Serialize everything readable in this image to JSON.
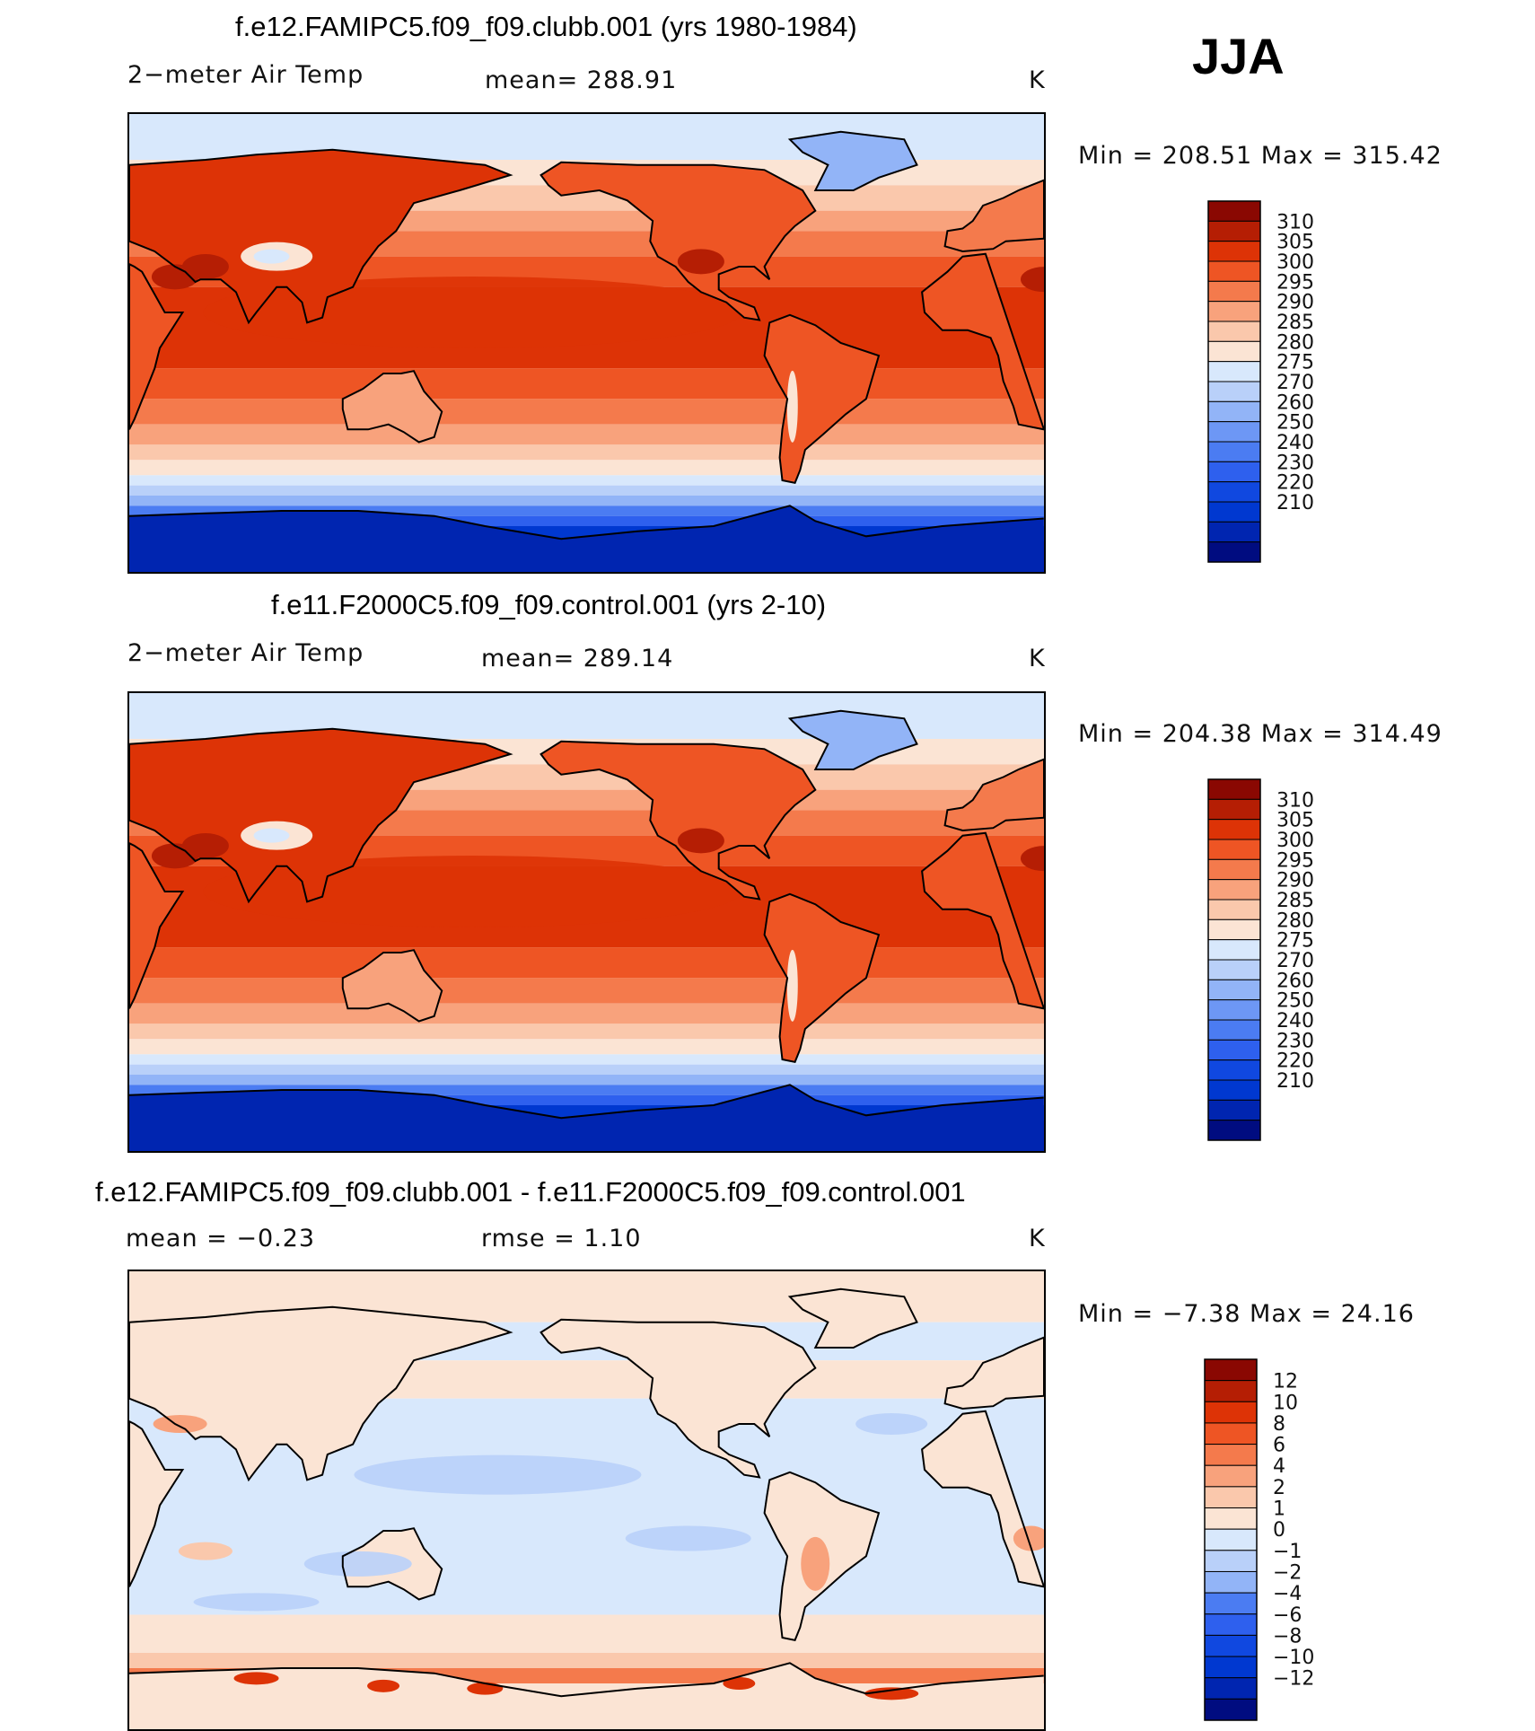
{
  "season": "JJA",
  "colors": {
    "abs_scale": [
      "#000c80",
      "#0025b0",
      "#0038d0",
      "#1048e0",
      "#2e60ee",
      "#4b7cf2",
      "#6d97f5",
      "#92b4f7",
      "#b9d0f9",
      "#d8e8fc",
      "#fbe4d4",
      "#fac8ac",
      "#f8a27c",
      "#f47a4c",
      "#ee5524",
      "#dd3306",
      "#b51e04",
      "#8a0802"
    ],
    "diff_scale": [
      "#000c80",
      "#0025b0",
      "#0038d0",
      "#1048e0",
      "#2e60ee",
      "#4b7cf2",
      "#92b4f7",
      "#b9d0f9",
      "#d8e8fc",
      "#fbe4d4",
      "#fac8ac",
      "#f8a27c",
      "#f47a4c",
      "#ee5524",
      "#dd3306",
      "#b51e04",
      "#8a0802"
    ],
    "land_outline": "#000000"
  },
  "chart_data": [
    {
      "type": "heatmap",
      "title": "f.e12.FAMIPC5.f09_f09.clubb.001 (yrs 1980-1984)",
      "variable": "2−meter Air Temp",
      "mean_label": "mean=  288.91",
      "mean": 288.91,
      "units": "K",
      "range_label": "Min  =  208.51  Max  =  315.42",
      "min": 208.51,
      "max": 315.42,
      "colorbar_ticks": [
        "310",
        "305",
        "300",
        "295",
        "290",
        "285",
        "280",
        "275",
        "270",
        "260",
        "250",
        "240",
        "230",
        "220",
        "210"
      ]
    },
    {
      "type": "heatmap",
      "title": "f.e11.F2000C5.f09_f09.control.001 (yrs 2-10)",
      "variable": "2−meter Air Temp",
      "mean_label": "mean=  289.14",
      "mean": 289.14,
      "units": "K",
      "range_label": "Min  =  204.38  Max  =  314.49",
      "min": 204.38,
      "max": 314.49,
      "colorbar_ticks": [
        "310",
        "305",
        "300",
        "295",
        "290",
        "285",
        "280",
        "275",
        "270",
        "260",
        "250",
        "240",
        "230",
        "220",
        "210"
      ]
    },
    {
      "type": "heatmap",
      "title": "f.e12.FAMIPC5.f09_f09.clubb.001 - f.e11.F2000C5.f09_f09.control.001",
      "mean_label": "mean  =    −0.23",
      "mean": -0.23,
      "rmse_label": "rmse  =     1.10",
      "rmse": 1.1,
      "units": "K",
      "range_label": "Min  =    −7.38  Max  =    24.16",
      "min": -7.38,
      "max": 24.16,
      "colorbar_ticks": [
        "12",
        "10",
        "8",
        "6",
        "4",
        "2",
        "1",
        "0",
        "−1",
        "−2",
        "−4",
        "−6",
        "−8",
        "−10",
        "−12"
      ]
    }
  ]
}
